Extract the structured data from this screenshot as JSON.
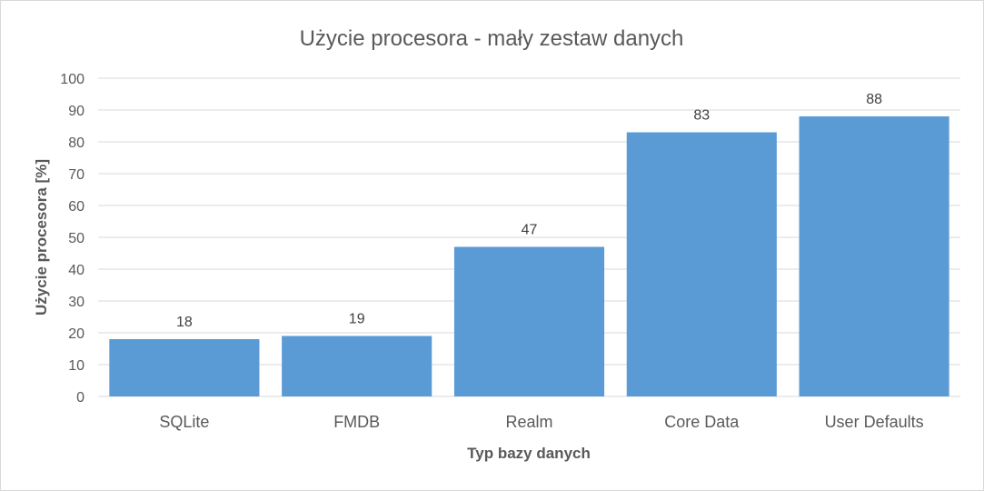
{
  "chart_data": {
    "type": "bar",
    "title": "Użycie procesora - mały zestaw danych",
    "xlabel": "Typ bazy danych",
    "ylabel": "Użycie procesora [%]",
    "categories": [
      "SQLite",
      "FMDB",
      "Realm",
      "Core Data",
      "User Defaults"
    ],
    "values": [
      18,
      19,
      47,
      83,
      88
    ],
    "data_labels": [
      "18",
      "19",
      "47",
      "83",
      "88"
    ],
    "ylim": [
      0,
      100
    ],
    "yticks": [
      0,
      10,
      20,
      30,
      40,
      50,
      60,
      70,
      80,
      90,
      100
    ],
    "grid": true,
    "legend": "none",
    "bar_color": "#5B9BD5",
    "grid_color": "#D9D9D9"
  }
}
